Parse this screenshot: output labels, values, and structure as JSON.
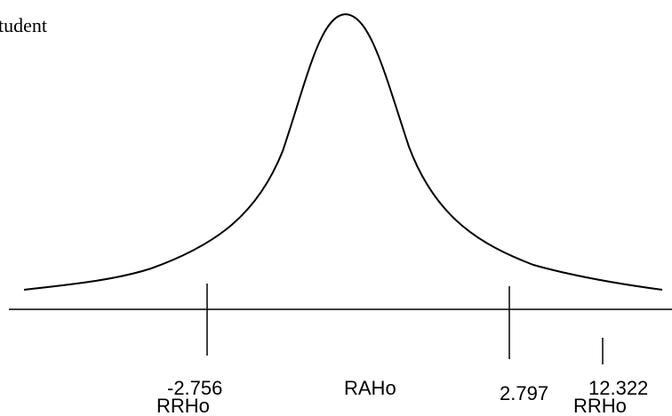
{
  "caption": "tudent",
  "diagram": {
    "distribution": "t-Student",
    "labels": {
      "left_critical": "-2.756",
      "left_region": "RRHo",
      "center_region": "RAHo",
      "right_critical": "2.797",
      "right_region": "RRHo",
      "statistic": "12.322"
    }
  },
  "colors": {
    "ink": "#000000",
    "background": "#ffffff"
  }
}
